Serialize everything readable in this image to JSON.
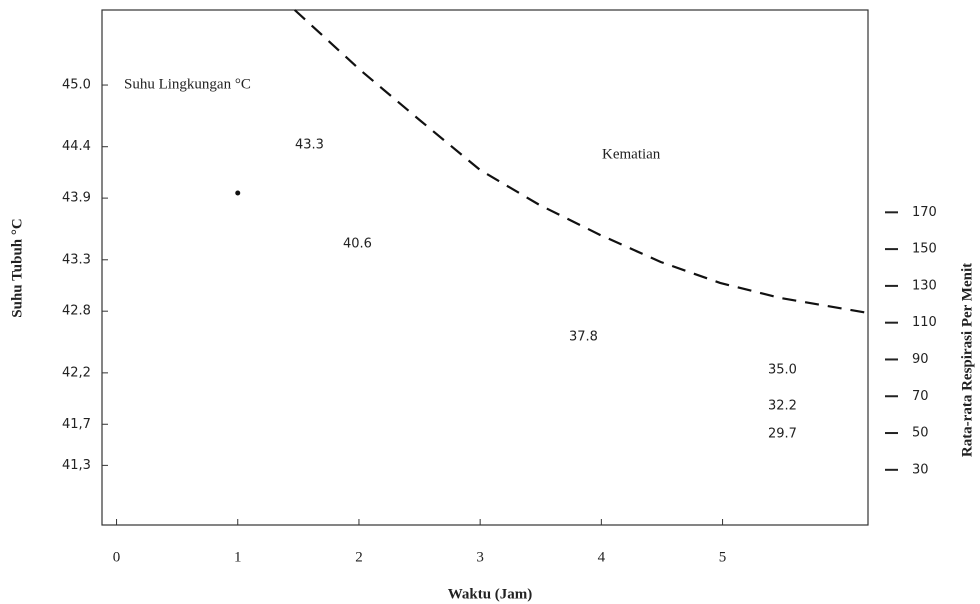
{
  "chart_data": {
    "type": "line",
    "x_label": "Waktu (Jam)",
    "y_label": "Suhu Tubuh °C",
    "y2_label": "Rata-rata Respirasi Per Menit",
    "xlim": [
      -0.12,
      6.2
    ],
    "xticks": [
      0,
      1,
      2,
      3,
      4,
      5
    ],
    "ylim": [
      40.72,
      45.73
    ],
    "yticks": [
      {
        "value": 45,
        "label": "45.0"
      },
      44.4,
      43.9,
      43.3,
      42.8,
      {
        "value": 42.2,
        "label": "42,2"
      },
      {
        "value": 41.7,
        "label": "41,7"
      },
      {
        "value": 41.3,
        "label": "41,3"
      }
    ],
    "y2lim": [
      0,
      280
    ],
    "y2ticks": [
      170,
      150,
      130,
      110,
      90,
      70,
      50,
      30
    ],
    "series": [
      {
        "style": "dashed",
        "axis": "y2",
        "color": "#111111",
        "x": [
          1.47,
          2.01,
          2.5,
          3.0,
          3.49,
          3.99,
          4.49,
          4.98,
          5.48,
          6.2
        ],
        "values": [
          280,
          247.4,
          220.2,
          193,
          174,
          157.7,
          143,
          131.6,
          123.4,
          115.3
        ]
      },
      {
        "style": "point",
        "color": "#111111",
        "x": [
          1
        ],
        "values": [
          43.95
        ]
      }
    ],
    "annotations": [
      "Suhu Lingkungan °C",
      "Kematian",
      "43.3",
      "40.6",
      "37.8",
      "35.0",
      "32.2",
      "29.7"
    ]
  }
}
